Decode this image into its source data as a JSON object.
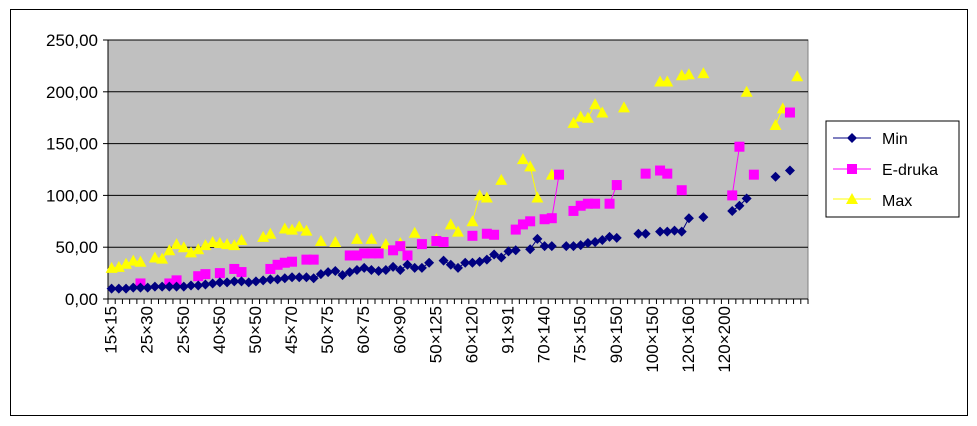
{
  "chart_data": {
    "type": "scatter",
    "title": "",
    "xlabel": "",
    "ylabel": "",
    "ylim": [
      0,
      250
    ],
    "yticks": [
      "0,00",
      "50,00",
      "100,00",
      "150,00",
      "200,00",
      "250,00"
    ],
    "grid": true,
    "legend": "right",
    "plot_background": "#c0c0c0",
    "x_tick_labels": [
      "15×15",
      "25×30",
      "25×50",
      "40×50",
      "50×50",
      "45×70",
      "50×75",
      "60×75",
      "60×90",
      "50×125",
      "60×120",
      "91×91",
      "70×140",
      "75×150",
      "90×150",
      "100×150",
      "120×160",
      "120×200"
    ],
    "x_count": 97,
    "series": [
      {
        "name": "Min",
        "color": "#000080",
        "marker": "diamond",
        "values": [
          10,
          10,
          10,
          11,
          11,
          11,
          12,
          12,
          12,
          12,
          12,
          13,
          13,
          14,
          15,
          16,
          16,
          17,
          17,
          16,
          17,
          18,
          19,
          19,
          20,
          21,
          21,
          21,
          20,
          24,
          26,
          27,
          23,
          26,
          28,
          30,
          28,
          27,
          28,
          31,
          28,
          33,
          30,
          30,
          35,
          null,
          37,
          33,
          30,
          35,
          35,
          36,
          38,
          43,
          40,
          46,
          47,
          null,
          48,
          58,
          51,
          51,
          null,
          51,
          51,
          52,
          54,
          55,
          57,
          60,
          59,
          null,
          null,
          63,
          63,
          null,
          65,
          65,
          66,
          65,
          78,
          null,
          79,
          null,
          null,
          null,
          85,
          90,
          97,
          null,
          null,
          null,
          118,
          null,
          124,
          null,
          null
        ]
      },
      {
        "name": "E-druka",
        "color": "#ff00ff",
        "marker": "square",
        "values": [
          null,
          null,
          null,
          null,
          15,
          null,
          null,
          null,
          15,
          18,
          null,
          null,
          22,
          24,
          null,
          25,
          null,
          29,
          26,
          null,
          null,
          null,
          29,
          33,
          35,
          36,
          null,
          38,
          38,
          null,
          null,
          null,
          null,
          42,
          42,
          44,
          44,
          44,
          null,
          47,
          51,
          42,
          null,
          53,
          null,
          56,
          55,
          null,
          null,
          null,
          61,
          null,
          63,
          62,
          null,
          null,
          67,
          72,
          75,
          null,
          77,
          78,
          120,
          null,
          85,
          90,
          92,
          92,
          null,
          92,
          110,
          null,
          null,
          null,
          121,
          null,
          124,
          121,
          null,
          105,
          null,
          null,
          null,
          null,
          null,
          null,
          100,
          147,
          null,
          120,
          null,
          null,
          null,
          null,
          180,
          null,
          null
        ]
      },
      {
        "name": "Max",
        "color": "#ffff00",
        "marker": "triangle",
        "values": [
          30,
          31,
          34,
          37,
          36,
          null,
          40,
          39,
          47,
          53,
          50,
          45,
          48,
          52,
          55,
          54,
          53,
          52,
          57,
          null,
          null,
          60,
          63,
          null,
          68,
          67,
          70,
          66,
          null,
          56,
          null,
          55,
          null,
          null,
          58,
          null,
          58,
          null,
          53,
          null,
          54,
          null,
          64,
          null,
          null,
          58,
          null,
          72,
          65,
          null,
          75,
          100,
          98,
          null,
          115,
          null,
          null,
          135,
          128,
          98,
          null,
          120,
          null,
          null,
          170,
          176,
          175,
          188,
          180,
          null,
          null,
          185,
          null,
          null,
          null,
          null,
          210,
          210,
          null,
          216,
          217,
          null,
          218,
          null,
          null,
          null,
          null,
          null,
          200,
          null,
          null,
          null,
          168,
          184,
          null,
          215,
          null
        ]
      }
    ]
  },
  "legend": {
    "items": [
      {
        "label": "Min",
        "color": "#000080",
        "marker": "diamond"
      },
      {
        "label": "E-druka",
        "color": "#ff00ff",
        "marker": "square"
      },
      {
        "label": "Max",
        "color": "#ffff00",
        "marker": "triangle"
      }
    ]
  }
}
